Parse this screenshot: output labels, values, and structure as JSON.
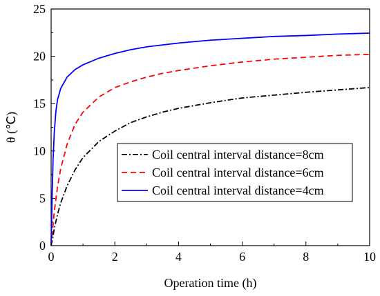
{
  "chart_data": {
    "type": "line",
    "xlabel": "Operation time (h)",
    "ylabel": "θ (℃)",
    "xlim": [
      0,
      10
    ],
    "ylim": [
      0,
      25
    ],
    "xticks": [
      "0",
      "2",
      "4",
      "6",
      "8",
      "10"
    ],
    "yticks": [
      "0",
      "5",
      "10",
      "15",
      "20",
      "25"
    ],
    "grid": false,
    "legend_position": "center-right",
    "series": [
      {
        "name": "Coil central interval distance=8cm",
        "color": "#000000",
        "dash": "dashdot",
        "x": [
          0,
          0.05,
          0.1,
          0.2,
          0.3,
          0.5,
          0.75,
          1.0,
          1.5,
          2.0,
          2.5,
          3.0,
          3.5,
          4.0,
          5.0,
          6.0,
          7.0,
          8.0,
          9.0,
          10.0
        ],
        "y": [
          0,
          0.8,
          1.8,
          3.3,
          4.5,
          6.3,
          8.0,
          9.3,
          11.0,
          12.1,
          13.0,
          13.6,
          14.1,
          14.5,
          15.1,
          15.6,
          15.9,
          16.2,
          16.45,
          16.7
        ]
      },
      {
        "name": "Coil central interval distance=6cm",
        "color": "#ff0000",
        "dash": "dash",
        "x": [
          0,
          0.05,
          0.1,
          0.2,
          0.3,
          0.5,
          0.75,
          1.0,
          1.5,
          2.0,
          2.5,
          3.0,
          3.5,
          4.0,
          5.0,
          6.0,
          7.0,
          8.0,
          9.0,
          10.0
        ],
        "y": [
          0,
          1.8,
          3.6,
          6.2,
          8.1,
          10.7,
          12.8,
          14.1,
          15.7,
          16.7,
          17.3,
          17.8,
          18.2,
          18.5,
          19.0,
          19.4,
          19.7,
          19.9,
          20.1,
          20.2
        ]
      },
      {
        "name": "Coil central interval distance=4cm",
        "color": "#0000ff",
        "dash": "solid",
        "x": [
          0,
          0.03,
          0.06,
          0.1,
          0.15,
          0.2,
          0.3,
          0.5,
          0.75,
          1.0,
          1.5,
          2.0,
          2.5,
          3.0,
          3.5,
          4.0,
          5.0,
          6.0,
          7.0,
          8.0,
          9.0,
          10.0
        ],
        "y": [
          0,
          5.0,
          9.0,
          12.0,
          14.2,
          15.4,
          16.6,
          17.8,
          18.6,
          19.1,
          19.8,
          20.3,
          20.7,
          21.0,
          21.2,
          21.4,
          21.7,
          21.9,
          22.1,
          22.2,
          22.35,
          22.45
        ]
      }
    ]
  }
}
